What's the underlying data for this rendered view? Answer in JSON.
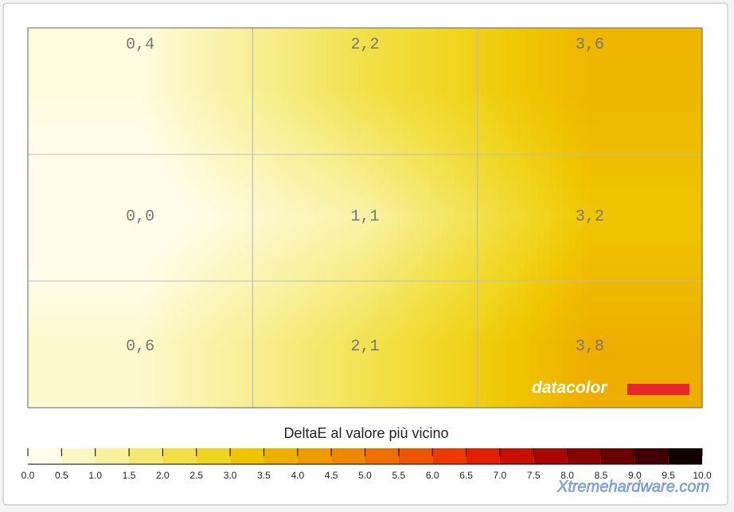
{
  "chart_data": {
    "type": "heatmap",
    "title": "DeltaE al valore più vicino",
    "values": [
      [
        0.4,
        2.2,
        3.6
      ],
      [
        0.0,
        1.1,
        3.2
      ],
      [
        0.6,
        2.1,
        3.8
      ]
    ],
    "value_labels": [
      [
        "0,4",
        "2,2",
        "3,6"
      ],
      [
        "0,0",
        "1,1",
        "3,2"
      ],
      [
        "0,6",
        "2,1",
        "3,8"
      ]
    ],
    "colorbar_ticks": [
      {
        "value": 0,
        "label": "0.0"
      },
      0.5,
      {
        "value": 1,
        "label": "1.0"
      },
      1.5,
      {
        "value": 2,
        "label": "2.0"
      },
      2.5,
      {
        "value": 3,
        "label": "3.0"
      },
      3.5,
      {
        "value": 4,
        "label": "4.0"
      },
      4.5,
      {
        "value": 5,
        "label": "5.0"
      },
      5.5,
      {
        "value": 6,
        "label": "6.0"
      },
      6.5,
      {
        "value": 7,
        "label": "7.0"
      },
      7.5,
      {
        "value": 8,
        "label": "8.0"
      },
      8.5,
      {
        "value": 9,
        "label": "9.0"
      },
      9.5,
      {
        "value": 10,
        "label": "10.0"
      }
    ],
    "colorscale": [
      "#fffdea",
      "#fbf7c2",
      "#f8f09a",
      "#f5e870",
      "#f2df45",
      "#f0d520",
      "#efc400",
      "#eeb000",
      "#ee9c00",
      "#ee8800",
      "#ee7000",
      "#ee5500",
      "#ee3a00",
      "#e02000",
      "#c81000",
      "#a80800",
      "#880400",
      "#680200",
      "#400000",
      "#100000"
    ],
    "grid": true,
    "watermark": "datacolor",
    "logo": "Xtremehardware.com"
  }
}
